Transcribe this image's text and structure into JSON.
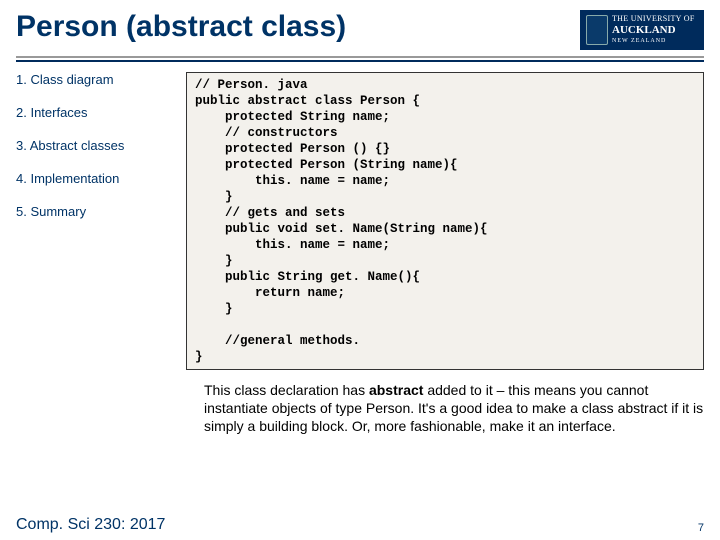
{
  "header": {
    "title": "Person (abstract class)",
    "logo_uni": "THE UNIVERSITY OF",
    "logo_auck": "AUCKLAND",
    "logo_nz": "NEW  ZEALAND"
  },
  "sidebar": {
    "items": [
      {
        "label": "1. Class diagram"
      },
      {
        "label": "2. Interfaces"
      },
      {
        "label": "3. Abstract classes"
      },
      {
        "label": "4. Implementation"
      },
      {
        "label": "5. Summary"
      }
    ]
  },
  "code": "// Person. java\npublic abstract class Person {\n    protected String name;\n    // constructors\n    protected Person () {}\n    protected Person (String name){\n        this. name = name;\n    }\n    // gets and sets\n    public void set. Name(String name){\n        this. name = name;\n    }\n    public String get. Name(){\n        return name;\n    }\n\n    //general methods.\n}",
  "paragraph": {
    "pre": "This class declaration has ",
    "bold": "abstract",
    "post": " added to it – this means you cannot instantiate objects of type Person. It's a good idea to make a class abstract if it is simply a building block. Or, more fashionable, make it an interface."
  },
  "footer": {
    "course": "Comp. Sci 230: 2017",
    "page": "7"
  },
  "colors": {
    "heading": "#003366",
    "logo_bg": "#002b5c",
    "code_bg": "#f3f1ec",
    "divider_light": "#999999",
    "divider_dark": "#002b5c"
  }
}
